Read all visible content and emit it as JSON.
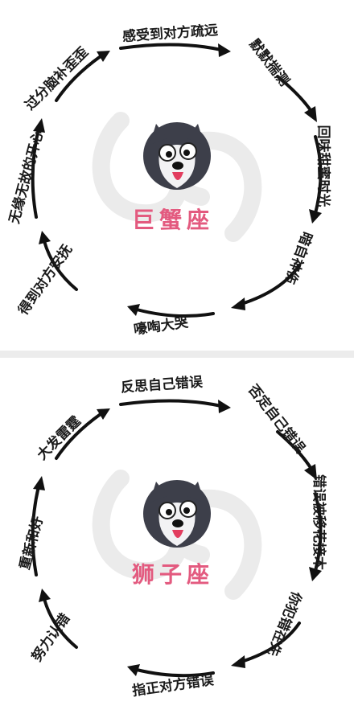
{
  "colors": {
    "accent": "#e35a7f",
    "ink": "#1a1a1a",
    "watermark": "#ebebeb"
  },
  "panels": [
    {
      "sign": "巨蟹座",
      "avatar_icon": "husky-dog-icon",
      "steps": [
        "感受到对方疏远",
        "默默揣测",
        "回味甜蜜时光",
        "暗自神伤",
        "嚎啕大哭",
        "得到对方安抚",
        "无缘无故的开心",
        "过分脑补歪歪"
      ]
    },
    {
      "sign": "狮子座",
      "avatar_icon": "husky-dog-icon",
      "steps": [
        "反思自己错误",
        "否定自己错误",
        "错误被移花接木",
        "你犯错在先",
        "指正对方错误",
        "努力认错",
        "重新和好",
        "大发雷霆"
      ]
    }
  ]
}
